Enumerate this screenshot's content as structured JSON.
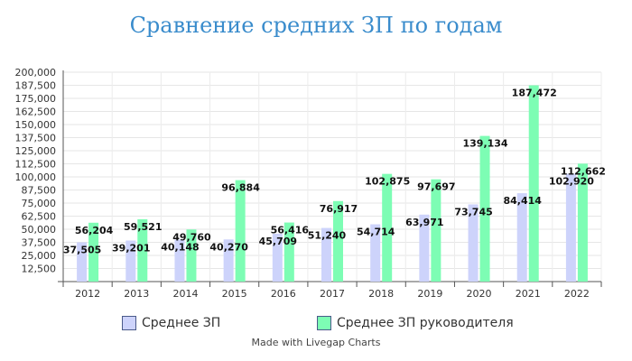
{
  "chart_data": {
    "type": "bar",
    "title": "Сравнение средних ЗП по годам",
    "categories": [
      "2012",
      "2013",
      "2014",
      "2015",
      "2016",
      "2017",
      "2018",
      "2019",
      "2020",
      "2021",
      "2022"
    ],
    "series": [
      {
        "name": "Среднее ЗП",
        "color": "#cdd3fb",
        "values": [
          37505,
          39201,
          40148,
          40270,
          45709,
          51240,
          54714,
          63971,
          73745,
          84414,
          102920
        ],
        "labels": [
          "37,505",
          "39,201",
          "40,148",
          "40,270",
          "45,709",
          "51,240",
          "54,714",
          "63,971",
          "73,745",
          "84,414",
          "102,920"
        ]
      },
      {
        "name": "Среднее ЗП руководителя",
        "color": "#7dfdb4",
        "values": [
          56204,
          59521,
          49760,
          96884,
          56416,
          76917,
          102875,
          97697,
          139134,
          187472,
          112662
        ],
        "labels": [
          "56,204",
          "59,521",
          "49,760",
          "96,884",
          "56,416",
          "76,917",
          "102,875",
          "97,697",
          "139,134",
          "187,472",
          "112,662"
        ]
      }
    ],
    "y_ticks": [
      {
        "value": 12500,
        "label": "12,500"
      },
      {
        "value": 25000,
        "label": "25,000"
      },
      {
        "value": 37500,
        "label": "37,500"
      },
      {
        "value": 50000,
        "label": "50,000"
      },
      {
        "value": 62500,
        "label": "62,500"
      },
      {
        "value": 75000,
        "label": "75,000"
      },
      {
        "value": 87500,
        "label": "87,500"
      },
      {
        "value": 100000,
        "label": "100,000"
      },
      {
        "value": 112500,
        "label": "112,500"
      },
      {
        "value": 125000,
        "label": "125,000"
      },
      {
        "value": 137500,
        "label": "137,500"
      },
      {
        "value": 150000,
        "label": "150,000"
      },
      {
        "value": 162500,
        "label": "162,500"
      },
      {
        "value": 175000,
        "label": "175,000"
      },
      {
        "value": 187500,
        "label": "187,500"
      },
      {
        "value": 200000,
        "label": "200,000"
      }
    ],
    "ylim": [
      0,
      200000
    ],
    "grid": true,
    "legend_position": "bottom"
  },
  "footer": {
    "credit": "Made with Livegap Charts"
  }
}
